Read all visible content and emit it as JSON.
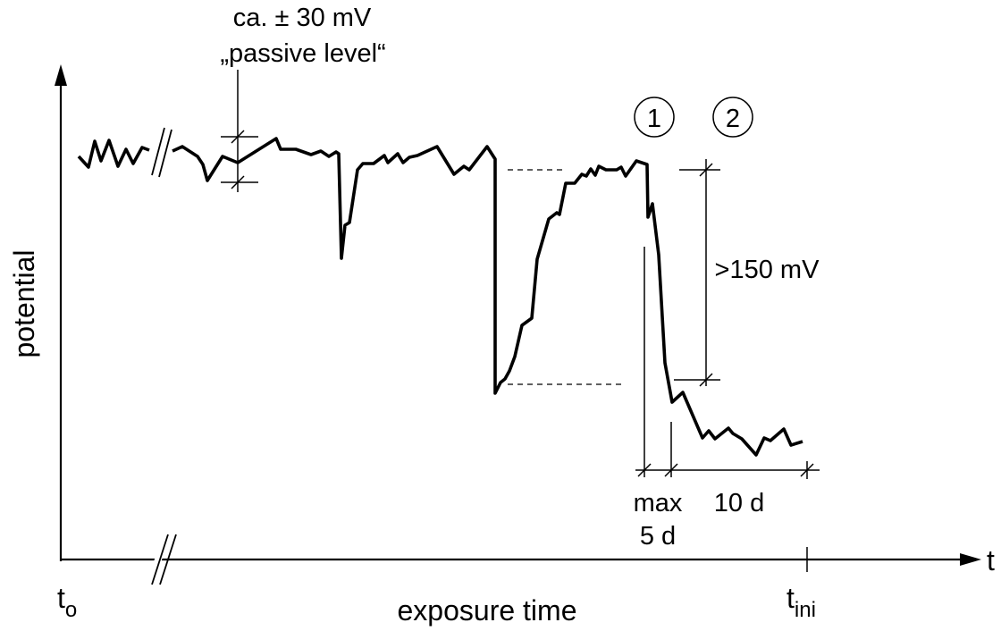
{
  "axes": {
    "y_label": "potential",
    "x_label": "exposure time",
    "x_arrow_label": "t",
    "origin_label_main": "t",
    "origin_label_sub": "o",
    "end_label_main": "t",
    "end_label_sub": "ini"
  },
  "annotations": {
    "passive_line1": "ca. ± 30 mV",
    "passive_line2": "„passive level“",
    "phase_1": "1",
    "phase_2": "2",
    "drop": ">150 mV",
    "max_line1": "max",
    "max_line2": "5 d",
    "ten_days": "10 d"
  },
  "icons": {
    "axis_break": "double-slash-break-icon",
    "arrow": "arrowhead-icon"
  }
}
